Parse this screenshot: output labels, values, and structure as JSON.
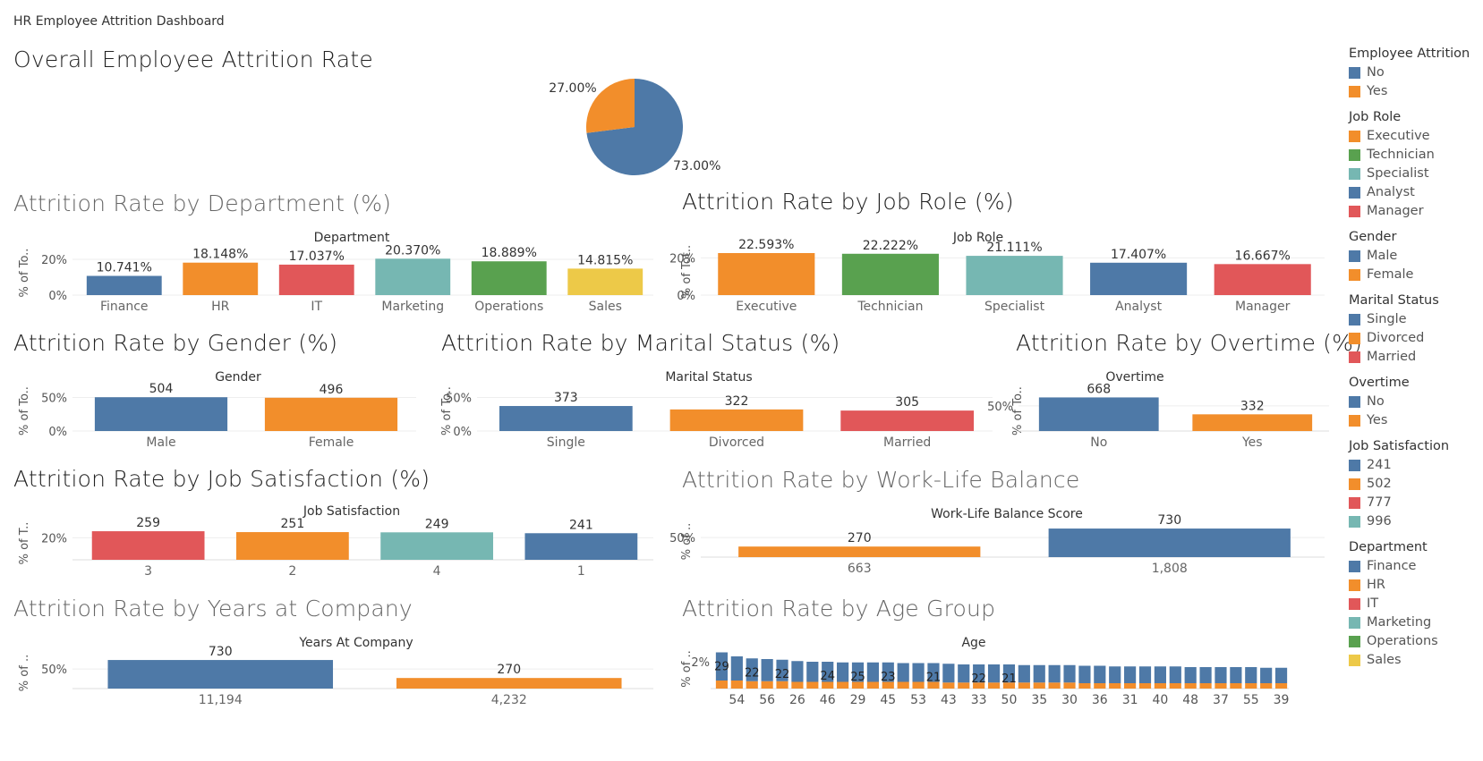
{
  "dashboard": {
    "title": "HR Employee Attrition Dashboard"
  },
  "colors": {
    "blue": "#4e79a7",
    "orange": "#f28e2b",
    "red": "#e15759",
    "teal": "#76b7b2",
    "green": "#59a14f",
    "yellow": "#edc948"
  },
  "sections": {
    "overall": "Overall Employee Attrition Rate",
    "department": "Attrition Rate by Department (%)",
    "job_role": "Attrition Rate by Job Role (%)",
    "gender": "Attrition Rate by Gender (%)",
    "marital": "Attrition Rate by Marital Status (%)",
    "overtime": "Attrition Rate by Overtime (%)",
    "job_satisfaction": "Attrition Rate by Job Satisfaction (%)",
    "work_life": "Attrition Rate by Work-Life Balance",
    "years": "Attrition Rate by Years at Company",
    "age": "Attrition Rate by Age Group"
  },
  "legend": [
    {
      "title": "Employee Attrition",
      "items": [
        {
          "label": "No",
          "color": "#4e79a7"
        },
        {
          "label": "Yes",
          "color": "#f28e2b"
        }
      ]
    },
    {
      "title": "Job Role",
      "items": [
        {
          "label": "Executive",
          "color": "#f28e2b"
        },
        {
          "label": "Technician",
          "color": "#59a14f"
        },
        {
          "label": "Specialist",
          "color": "#76b7b2"
        },
        {
          "label": "Analyst",
          "color": "#4e79a7"
        },
        {
          "label": "Manager",
          "color": "#e15759"
        }
      ]
    },
    {
      "title": "Gender",
      "items": [
        {
          "label": "Male",
          "color": "#4e79a7"
        },
        {
          "label": "Female",
          "color": "#f28e2b"
        }
      ]
    },
    {
      "title": "Marital Status",
      "items": [
        {
          "label": "Single",
          "color": "#4e79a7"
        },
        {
          "label": "Divorced",
          "color": "#f28e2b"
        },
        {
          "label": "Married",
          "color": "#e15759"
        }
      ]
    },
    {
      "title": "Overtime",
      "items": [
        {
          "label": "No",
          "color": "#4e79a7"
        },
        {
          "label": "Yes",
          "color": "#f28e2b"
        }
      ]
    },
    {
      "title": "Job Satisfaction",
      "items": [
        {
          "label": "241",
          "color": "#4e79a7"
        },
        {
          "label": "502",
          "color": "#f28e2b"
        },
        {
          "label": "777",
          "color": "#e15759"
        },
        {
          "label": "996",
          "color": "#76b7b2"
        }
      ]
    },
    {
      "title": "Department",
      "items": [
        {
          "label": "Finance",
          "color": "#4e79a7"
        },
        {
          "label": "HR",
          "color": "#f28e2b"
        },
        {
          "label": "IT",
          "color": "#e15759"
        },
        {
          "label": "Marketing",
          "color": "#76b7b2"
        },
        {
          "label": "Operations",
          "color": "#59a14f"
        },
        {
          "label": "Sales",
          "color": "#edc948"
        }
      ]
    }
  ],
  "chart_data": [
    {
      "id": "overall",
      "type": "pie",
      "slices": [
        {
          "label": "73.00%",
          "value": 73,
          "color": "#4e79a7"
        },
        {
          "label": "27.00%",
          "value": 27,
          "color": "#f28e2b"
        }
      ]
    },
    {
      "id": "department",
      "type": "bar",
      "header": "Department",
      "ylabel": "% of To..",
      "yticks": [
        "20%",
        "0%"
      ],
      "ylim": [
        0,
        25
      ],
      "categories": [
        "Finance",
        "HR",
        "IT",
        "Marketing",
        "Operations",
        "Sales"
      ],
      "values": [
        10.741,
        18.148,
        17.037,
        20.37,
        18.889,
        14.815
      ],
      "labels": [
        "10.741%",
        "18.148%",
        "17.037%",
        "20.370%",
        "18.889%",
        "14.815%"
      ],
      "colors": [
        "#4e79a7",
        "#f28e2b",
        "#e15759",
        "#76b7b2",
        "#59a14f",
        "#edc948"
      ]
    },
    {
      "id": "job_role",
      "type": "bar",
      "header": "Job Role",
      "ylabel": "% of Tot..",
      "yticks": [
        "20%",
        "0%"
      ],
      "ylim": [
        0,
        25
      ],
      "categories": [
        "Executive",
        "Technician",
        "Specialist",
        "Analyst",
        "Manager"
      ],
      "values": [
        22.593,
        22.222,
        21.111,
        17.407,
        16.667
      ],
      "labels": [
        "22.593%",
        "22.222%",
        "21.111%",
        "17.407%",
        "16.667%"
      ],
      "colors": [
        "#f28e2b",
        "#59a14f",
        "#76b7b2",
        "#4e79a7",
        "#e15759"
      ]
    },
    {
      "id": "gender",
      "type": "bar",
      "header": "Gender",
      "ylabel": "% of To..",
      "yticks": [
        "50%",
        "0%"
      ],
      "ylim": [
        0,
        60
      ],
      "categories": [
        "Male",
        "Female"
      ],
      "values": [
        50.4,
        49.6
      ],
      "labels": [
        "504",
        "496"
      ],
      "colors": [
        "#4e79a7",
        "#f28e2b"
      ]
    },
    {
      "id": "marital",
      "type": "bar",
      "header": "Marital Status",
      "ylabel": "% of To..",
      "yticks": [
        "50%",
        "0%"
      ],
      "ylim": [
        0,
        60
      ],
      "categories": [
        "Single",
        "Divorced",
        "Married"
      ],
      "values": [
        37.3,
        32.2,
        30.5
      ],
      "labels": [
        "373",
        "322",
        "305"
      ],
      "colors": [
        "#4e79a7",
        "#f28e2b",
        "#e15759"
      ]
    },
    {
      "id": "overtime",
      "type": "bar",
      "header": "Overtime",
      "ylabel": "% of To..",
      "yticks": [
        "50%"
      ],
      "ylim": [
        0,
        80
      ],
      "categories": [
        "No",
        "Yes"
      ],
      "values": [
        66.8,
        33.2
      ],
      "labels": [
        "668",
        "332"
      ],
      "colors": [
        "#4e79a7",
        "#f28e2b"
      ]
    },
    {
      "id": "job_satisfaction",
      "type": "bar",
      "header": "Job Satisfaction",
      "ylabel": "% of T..",
      "yticks": [
        "20%"
      ],
      "ylim": [
        0,
        30
      ],
      "categories": [
        "3",
        "2",
        "4",
        "1"
      ],
      "values": [
        25.9,
        25.1,
        24.9,
        24.1
      ],
      "labels": [
        "259",
        "251",
        "249",
        "241"
      ],
      "colors": [
        "#e15759",
        "#f28e2b",
        "#76b7b2",
        "#4e79a7"
      ]
    },
    {
      "id": "work_life",
      "type": "bar",
      "header": "Work-Life Balance Score",
      "ylabel": "% of ..",
      "yticks": [
        "50%"
      ],
      "ylim": [
        0,
        80
      ],
      "categories": [
        "663",
        "1,808"
      ],
      "values": [
        27.0,
        73.0
      ],
      "labels": [
        "270",
        "730"
      ],
      "colors": [
        "#f28e2b",
        "#4e79a7"
      ]
    },
    {
      "id": "years",
      "type": "bar",
      "header": "Years At Company",
      "ylabel": "% of ..",
      "yticks": [
        "50%"
      ],
      "ylim": [
        0,
        80
      ],
      "categories": [
        "11,194",
        "4,232"
      ],
      "values": [
        73.0,
        27.0
      ],
      "labels": [
        "730",
        "270"
      ],
      "colors": [
        "#4e79a7",
        "#f28e2b"
      ]
    },
    {
      "id": "age",
      "type": "stacked_bar",
      "header": "Age",
      "ylabel": "% of ..",
      "yticks": [
        "2%"
      ],
      "ylim": [
        0,
        3.2
      ],
      "categories": [
        "54",
        "56",
        "26",
        "46",
        "29",
        "45",
        "53",
        "43",
        "33",
        "50",
        "35",
        "30",
        "36",
        "31",
        "40",
        "48",
        "37",
        "55",
        "39"
      ],
      "bars": [
        {
          "no": 2.1,
          "yes": 0.6,
          "label": "29"
        },
        {
          "no": 1.8,
          "yes": 0.6,
          "label": ""
        },
        {
          "no": 1.7,
          "yes": 0.55,
          "label": "22"
        },
        {
          "no": 1.65,
          "yes": 0.55,
          "label": ""
        },
        {
          "no": 1.6,
          "yes": 0.55,
          "label": "22"
        },
        {
          "no": 1.55,
          "yes": 0.5,
          "label": ""
        },
        {
          "no": 1.5,
          "yes": 0.5,
          "label": ""
        },
        {
          "no": 1.5,
          "yes": 0.5,
          "label": "24"
        },
        {
          "no": 1.45,
          "yes": 0.5,
          "label": ""
        },
        {
          "no": 1.45,
          "yes": 0.5,
          "label": "25"
        },
        {
          "no": 1.45,
          "yes": 0.5,
          "label": ""
        },
        {
          "no": 1.45,
          "yes": 0.5,
          "label": "23"
        },
        {
          "no": 1.4,
          "yes": 0.5,
          "label": ""
        },
        {
          "no": 1.4,
          "yes": 0.5,
          "label": ""
        },
        {
          "no": 1.4,
          "yes": 0.5,
          "label": "21"
        },
        {
          "no": 1.4,
          "yes": 0.45,
          "label": ""
        },
        {
          "no": 1.35,
          "yes": 0.45,
          "label": ""
        },
        {
          "no": 1.35,
          "yes": 0.45,
          "label": "22"
        },
        {
          "no": 1.35,
          "yes": 0.45,
          "label": ""
        },
        {
          "no": 1.35,
          "yes": 0.45,
          "label": "21"
        },
        {
          "no": 1.3,
          "yes": 0.45,
          "label": ""
        },
        {
          "no": 1.3,
          "yes": 0.45,
          "label": ""
        },
        {
          "no": 1.3,
          "yes": 0.45,
          "label": ""
        },
        {
          "no": 1.3,
          "yes": 0.45,
          "label": ""
        },
        {
          "no": 1.3,
          "yes": 0.4,
          "label": ""
        },
        {
          "no": 1.3,
          "yes": 0.4,
          "label": ""
        },
        {
          "no": 1.25,
          "yes": 0.4,
          "label": ""
        },
        {
          "no": 1.25,
          "yes": 0.4,
          "label": ""
        },
        {
          "no": 1.25,
          "yes": 0.4,
          "label": ""
        },
        {
          "no": 1.25,
          "yes": 0.4,
          "label": ""
        },
        {
          "no": 1.25,
          "yes": 0.4,
          "label": ""
        },
        {
          "no": 1.2,
          "yes": 0.4,
          "label": ""
        },
        {
          "no": 1.2,
          "yes": 0.4,
          "label": ""
        },
        {
          "no": 1.2,
          "yes": 0.4,
          "label": ""
        },
        {
          "no": 1.2,
          "yes": 0.4,
          "label": ""
        },
        {
          "no": 1.2,
          "yes": 0.4,
          "label": ""
        },
        {
          "no": 1.15,
          "yes": 0.4,
          "label": ""
        },
        {
          "no": 1.15,
          "yes": 0.4,
          "label": ""
        }
      ]
    }
  ]
}
